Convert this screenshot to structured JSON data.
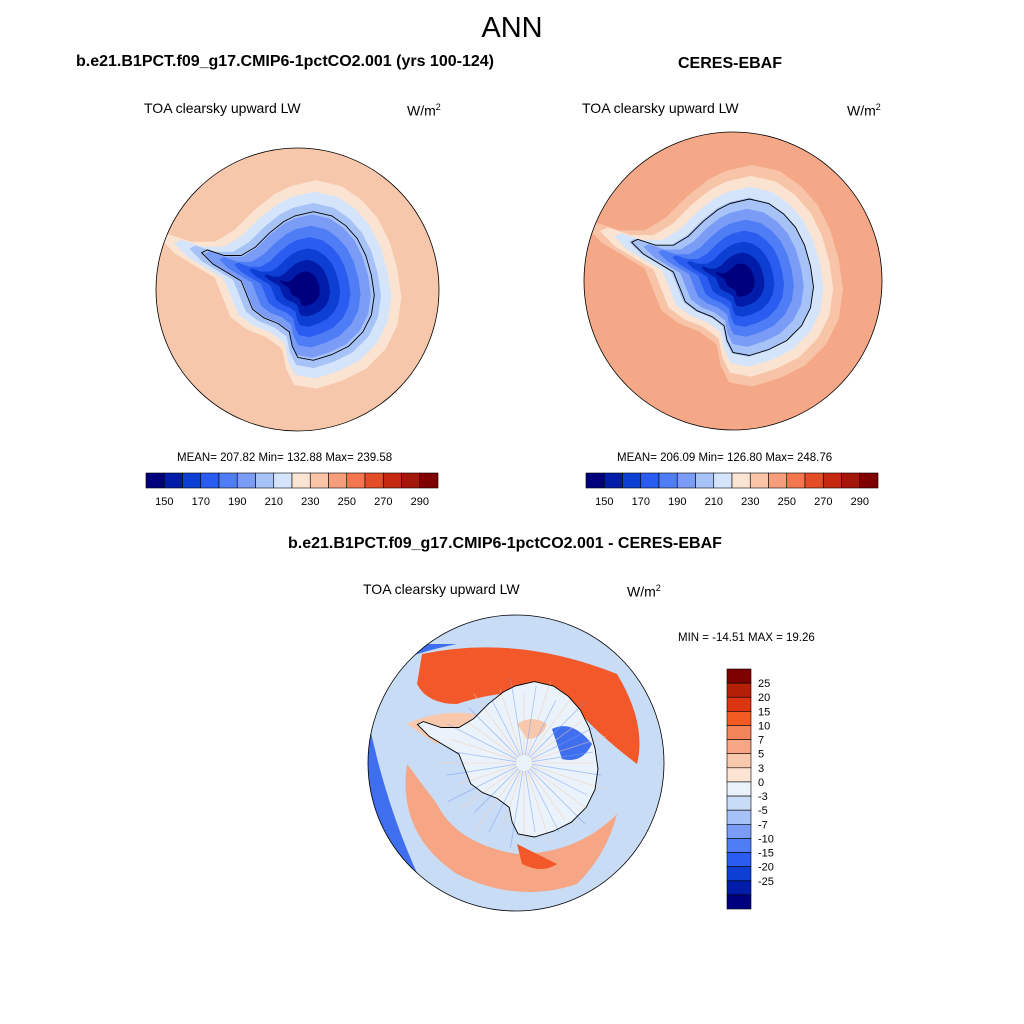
{
  "title": "ANN",
  "panels": [
    {
      "title": "b.e21.B1PCT.f09_g17.CMIP6-1pctCO2.001 (yrs 100-124)",
      "variable": "TOA clearsky upward LW",
      "units_base": "W/m",
      "units_exp": "2",
      "stats": "MEAN= 207.82  Min= 132.88  Max= 239.58"
    },
    {
      "title": "CERES-EBAF",
      "variable": "TOA clearsky upward LW",
      "units_base": "W/m",
      "units_exp": "2",
      "stats": "MEAN= 206.09  Min= 126.80  Max= 248.76"
    },
    {
      "title": "b.e21.B1PCT.f09_g17.CMIP6-1pctCO2.001 - CERES-EBAF",
      "variable": "TOA clearsky upward LW",
      "units_base": "W/m",
      "units_exp": "2",
      "stats": "MIN = -14.51 MAX =  19.26"
    }
  ],
  "colorbars": {
    "absolute": {
      "colors": [
        "#00007f",
        "#001ca8",
        "#0d3fd3",
        "#2a5cf0",
        "#4f7df5",
        "#7a9cf6",
        "#a7c2f7",
        "#d4e4fa",
        "#fbe4d3",
        "#f9c4a8",
        "#f69e7c",
        "#f2774f",
        "#e44e26",
        "#c52a10",
        "#a3170a",
        "#7f0000"
      ],
      "labels": [
        "150",
        "170",
        "190",
        "210",
        "230",
        "250",
        "270",
        "290"
      ]
    },
    "difference": {
      "colors": [
        "#7f0000",
        "#b61f07",
        "#dc3512",
        "#f25a22",
        "#f4845a",
        "#f6a684",
        "#f8c8ad",
        "#fbe4d3",
        "#eaf3fb",
        "#c8dcf6",
        "#a7c2f7",
        "#7a9cf6",
        "#4f7df5",
        "#2a5cf0",
        "#0d3fd3",
        "#001ca8",
        "#00007f"
      ],
      "labels": [
        "25",
        "20",
        "15",
        "10",
        "7",
        "5",
        "3",
        "0",
        "-3",
        "-5",
        "-7",
        "-10",
        "-15",
        "-20",
        "-25"
      ]
    }
  },
  "maps": {
    "model": {
      "rings": [
        "#f7c7ab",
        "#fbe3d1",
        "#d4e4fa",
        "#a7c2f7",
        "#7a9cf6",
        "#4f7df5",
        "#2a5cf0",
        "#0d3fd3",
        "#001ca8",
        "#00007f"
      ]
    },
    "obs": {
      "rings": [
        "#f5a888",
        "#f8c4a8",
        "#fbe3d1",
        "#d4e4fa",
        "#a7c2f7",
        "#7a9cf6",
        "#4f7df5",
        "#2a5cf0",
        "#0d3fd3",
        "#001ca8",
        "#00007f"
      ]
    },
    "diff": {
      "colors": {
        "pos_strong": "#f2582a",
        "pos_mid": "#f6a684",
        "pos_weak": "#f8c8ad",
        "neutral": "#eaf3fb",
        "neg_weak": "#c8dcf6",
        "neg_mid": "#7a9cf6",
        "neg_strong": "#3f6fee"
      }
    }
  }
}
